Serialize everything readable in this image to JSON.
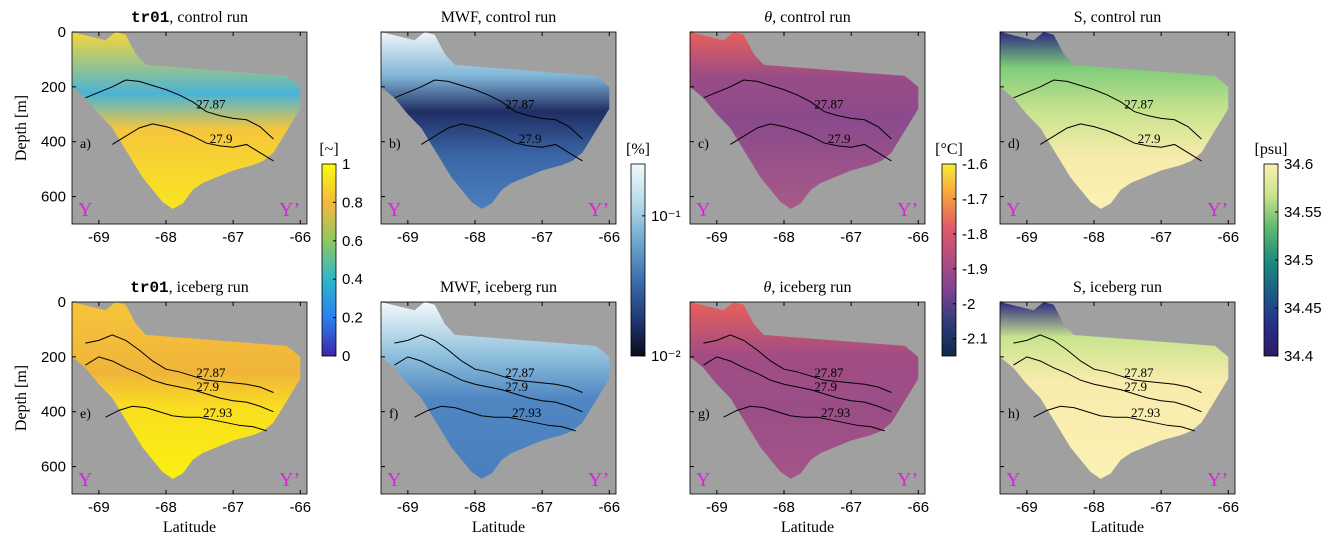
{
  "figure": {
    "panel_rows": [
      {
        "run": "control",
        "panels": [
          {
            "id": "a",
            "letter": "a)",
            "title_var": "tr01",
            "title_var_mono": true,
            "title_rest": ", control run",
            "colormap": "tr01",
            "field": "tracer",
            "contours": [
              "27.87",
              "27.9"
            ]
          },
          {
            "id": "b",
            "letter": "b)",
            "title_var": "MWF",
            "title_var_mono": false,
            "title_rest": ", control run",
            "colormap": "mwf",
            "field": "mwf",
            "contours": [
              "27.87",
              "27.9"
            ]
          },
          {
            "id": "c",
            "letter": "c)",
            "title_var": "θ",
            "title_var_mono": false,
            "title_var_italic": true,
            "title_rest": ", control run",
            "colormap": "theta",
            "field": "theta",
            "contours": [
              "27.87",
              "27.9"
            ]
          },
          {
            "id": "d",
            "letter": "d)",
            "title_var": "S",
            "title_var_mono": false,
            "title_rest": ", control run",
            "colormap": "salt",
            "field": "salt",
            "contours": [
              "27.87",
              "27.9"
            ]
          }
        ]
      },
      {
        "run": "iceberg",
        "panels": [
          {
            "id": "e",
            "letter": "e)",
            "title_var": "tr01",
            "title_var_mono": true,
            "title_rest": ", iceberg run",
            "colormap": "tr01",
            "field": "tracer",
            "contours": [
              "27.87",
              "27.9",
              "27.93"
            ]
          },
          {
            "id": "f",
            "letter": "f)",
            "title_var": "MWF",
            "title_var_mono": false,
            "title_rest": ", iceberg run",
            "colormap": "mwf",
            "field": "mwf",
            "contours": [
              "27.87",
              "27.9",
              "27.93"
            ]
          },
          {
            "id": "g",
            "letter": "g)",
            "title_var": "θ",
            "title_var_mono": false,
            "title_var_italic": true,
            "title_rest": ", iceberg run",
            "colormap": "theta",
            "field": "theta",
            "contours": [
              "27.87",
              "27.9",
              "27.93"
            ]
          },
          {
            "id": "h",
            "letter": "h)",
            "title_var": "S",
            "title_var_mono": false,
            "title_rest": ", iceberg run",
            "colormap": "salt",
            "field": "salt",
            "contours": [
              "27.87",
              "27.9",
              "27.93"
            ]
          }
        ]
      }
    ],
    "section_labels": {
      "start": "Y",
      "end": "Y’"
    },
    "y_axis_label": "Depth [m]",
    "x_axis_label": "Latitude",
    "colorbars": [
      {
        "id": "tr01",
        "unit": "[~]",
        "ticks": [
          "1",
          "0.8",
          "0.6",
          "0.4",
          "0.2",
          "0"
        ],
        "colors": [
          "#f9fb0e",
          "#f5b93c",
          "#8fc763",
          "#2db7c9",
          "#2a80ef",
          "#3e26a8"
        ]
      },
      {
        "id": "mwf",
        "unit": "[%]",
        "ticks": [
          "10⁻¹",
          "10⁻²"
        ],
        "colors": [
          "#f2f8fb",
          "#b9dce9",
          "#6ea9cf",
          "#3d6fb0",
          "#223b78",
          "#0a0a1a"
        ]
      },
      {
        "id": "theta",
        "unit": "[°C]",
        "ticks": [
          "-1.6",
          "-1.7",
          "-1.8",
          "-1.9",
          "-2",
          "-2.1"
        ],
        "colors": [
          "#f5ec3b",
          "#f7a03d",
          "#e0586a",
          "#b24c80",
          "#7b4392",
          "#2b3b78",
          "#0e2a4a"
        ]
      },
      {
        "id": "salt",
        "unit": "[psu]",
        "ticks": [
          "34.6",
          "34.55",
          "34.5",
          "34.45",
          "34.4"
        ],
        "colors": [
          "#fbf0b0",
          "#c8e38e",
          "#5fb96c",
          "#1f8c7e",
          "#1a5e84",
          "#272f8a",
          "#2c1b62"
        ]
      }
    ]
  },
  "chart_data": {
    "type": "heatmap",
    "description_axes": {
      "x": {
        "label": "Latitude",
        "range": [
          -69.4,
          -65.9
        ],
        "ticks": [
          -69,
          -68,
          -67,
          -66
        ]
      },
      "y": {
        "label": "Depth [m]",
        "range": [
          0,
          700
        ],
        "inverted": true,
        "ticks": [
          0,
          200,
          400,
          600
        ]
      }
    },
    "background_color": "#a0a0a0",
    "panels": [
      {
        "id": "a",
        "variable": "tr01",
        "run": "control",
        "cbar_range": [
          0,
          1
        ],
        "unit": "[~]"
      },
      {
        "id": "b",
        "variable": "MWF",
        "run": "control",
        "cbar_range": [
          "10^-2",
          "10^-1"
        ],
        "scale": "log",
        "unit": "[%]"
      },
      {
        "id": "c",
        "variable": "θ",
        "run": "control",
        "cbar_range": [
          -2.15,
          -1.6
        ],
        "unit": "[°C]"
      },
      {
        "id": "d",
        "variable": "S",
        "run": "control",
        "cbar_range": [
          34.4,
          34.6
        ],
        "unit": "[psu]"
      },
      {
        "id": "e",
        "variable": "tr01",
        "run": "iceberg",
        "cbar_range": [
          0,
          1
        ],
        "unit": "[~]"
      },
      {
        "id": "f",
        "variable": "MWF",
        "run": "iceberg",
        "cbar_range": [
          "10^-2",
          "10^-1"
        ],
        "scale": "log",
        "unit": "[%]"
      },
      {
        "id": "g",
        "variable": "θ",
        "run": "iceberg",
        "cbar_range": [
          -2.15,
          -1.6
        ],
        "unit": "[°C]"
      },
      {
        "id": "h",
        "variable": "S",
        "run": "iceberg",
        "cbar_range": [
          34.4,
          34.6
        ],
        "unit": "[psu]"
      }
    ],
    "bathymetry": {
      "lat": [
        -69.4,
        -69.2,
        -69.0,
        -68.8,
        -68.65,
        -68.5,
        -68.35,
        -68.2,
        -68.05,
        -67.9,
        -67.75,
        -67.6,
        -67.45,
        -67.3,
        -67.15,
        -67.0,
        -66.85,
        -66.7,
        -66.55,
        -66.4,
        -66.25,
        -66.1,
        -66.0
      ],
      "depth": [
        200,
        240,
        300,
        350,
        410,
        470,
        530,
        575,
        620,
        645,
        625,
        575,
        550,
        535,
        520,
        505,
        495,
        485,
        470,
        440,
        380,
        320,
        280
      ]
    },
    "contours_control": [
      {
        "label": "27.87",
        "lat": [
          -69.2,
          -69.0,
          -68.8,
          -68.6,
          -68.4,
          -68.2,
          -68.0,
          -67.8,
          -67.6,
          -67.4,
          -67.2,
          -67.0,
          -66.8,
          -66.6,
          -66.4
        ],
        "depth": [
          240,
          220,
          200,
          175,
          180,
          195,
          210,
          230,
          255,
          290,
          305,
          315,
          320,
          345,
          390
        ]
      },
      {
        "label": "27.9",
        "lat": [
          -68.8,
          -68.6,
          -68.4,
          -68.2,
          -68.0,
          -67.8,
          -67.6,
          -67.4,
          -67.2,
          -67.0,
          -66.8,
          -66.6,
          -66.4
        ],
        "depth": [
          410,
          380,
          350,
          335,
          345,
          360,
          380,
          405,
          415,
          420,
          410,
          440,
          470
        ]
      }
    ],
    "contours_iceberg": [
      {
        "label": "27.87",
        "lat": [
          -69.2,
          -69.0,
          -68.8,
          -68.6,
          -68.4,
          -68.2,
          -68.0,
          -67.8,
          -67.6,
          -67.4,
          -67.2,
          -67.0,
          -66.8,
          -66.6,
          -66.4
        ],
        "depth": [
          150,
          140,
          120,
          140,
          175,
          215,
          245,
          255,
          270,
          285,
          290,
          295,
          300,
          310,
          330
        ]
      },
      {
        "label": "27.9",
        "lat": [
          -69.2,
          -69.0,
          -68.8,
          -68.6,
          -68.4,
          -68.2,
          -68.0,
          -67.8,
          -67.6,
          -67.4,
          -67.2,
          -67.0,
          -66.8,
          -66.6,
          -66.4
        ],
        "depth": [
          230,
          200,
          215,
          240,
          260,
          285,
          300,
          310,
          320,
          335,
          350,
          360,
          365,
          380,
          400
        ]
      },
      {
        "label": "27.93",
        "lat": [
          -68.9,
          -68.7,
          -68.5,
          -68.3,
          -68.1,
          -67.9,
          -67.7,
          -67.5,
          -67.3,
          -67.1,
          -66.9,
          -66.7,
          -66.5
        ],
        "depth": [
          420,
          395,
          380,
          385,
          400,
          415,
          420,
          420,
          430,
          440,
          450,
          455,
          470
        ]
      }
    ]
  }
}
